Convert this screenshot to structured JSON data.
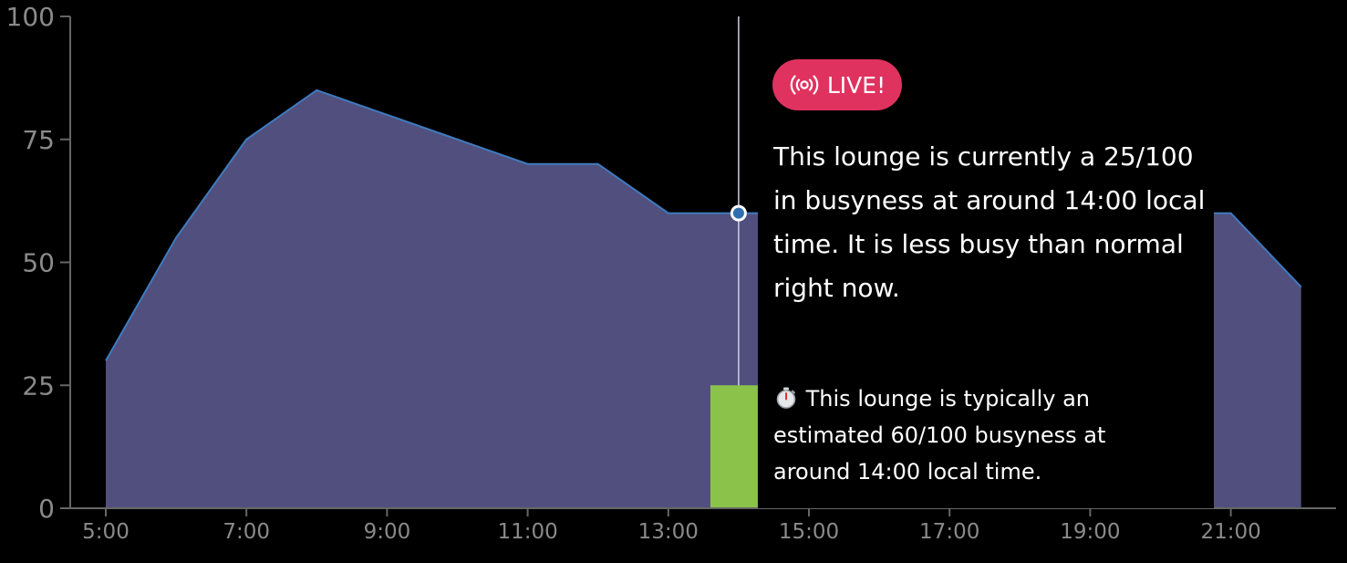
{
  "chart_data": {
    "type": "area",
    "x": [
      "5:00",
      "6:00",
      "7:00",
      "8:00",
      "9:00",
      "10:00",
      "11:00",
      "12:00",
      "13:00",
      "14:00",
      "15:00",
      "16:00",
      "17:00",
      "18:00",
      "19:00",
      "20:00",
      "21:00",
      "22:00"
    ],
    "x_tick_labels": [
      "5:00",
      "7:00",
      "9:00",
      "11:00",
      "13:00",
      "15:00",
      "17:00",
      "19:00",
      "21:00"
    ],
    "series": [
      {
        "values": [
          30,
          55,
          75,
          85,
          80,
          75,
          70,
          70,
          60,
          60,
          60,
          60,
          60,
          60,
          60,
          60,
          60,
          45
        ]
      }
    ],
    "ylim": [
      0,
      100
    ],
    "y_ticks": [
      0,
      25,
      50,
      75,
      100
    ],
    "current_hour": "14:00",
    "current_value": 25,
    "typical_value": 60,
    "grid": false,
    "colors": {
      "area": "#514f7e",
      "line": "#3f7bbf",
      "current_bar": "#8bc34a",
      "marker": "#2f6fb0",
      "axis": "#666666"
    }
  },
  "tooltip": {
    "badge_label": "LIVE!",
    "badge_icon": "broadcast-icon",
    "badge_color": "#e0325f",
    "main_text": "This lounge is currently a 25/100 in busyness at around 14:00 local time. It is less busy than normal right now.",
    "typical_icon": "stopwatch-icon",
    "typical_text": "This lounge is typically an estimated 60/100 busyness at around 14:00 local time."
  }
}
